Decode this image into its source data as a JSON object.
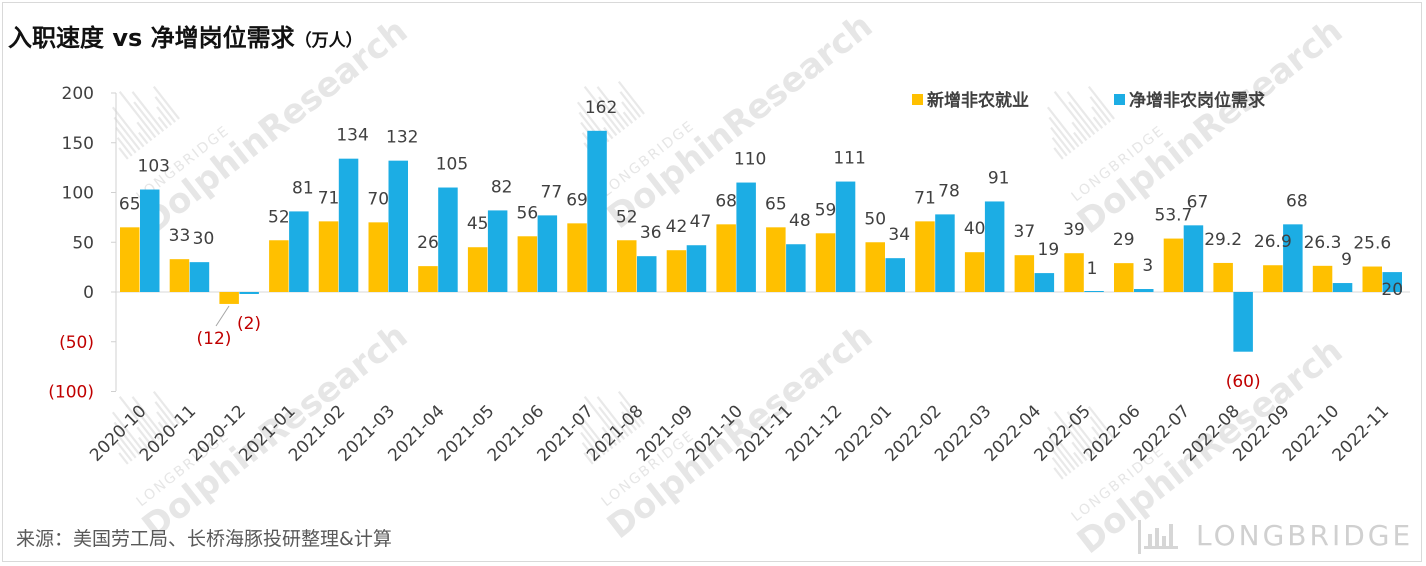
{
  "title": "入职速度 vs 净增岗位需求",
  "title_unit": "（万人）",
  "source": "来源：美国劳工局、长桥海豚投研整理&计算",
  "watermark": {
    "text": "DolphinResearch",
    "subtext": "LONGBRIDGE",
    "brand": "LONGBRIDGE"
  },
  "colors": {
    "series1": "#ffc000",
    "series2": "#1cade4",
    "negative_label": "#c00000",
    "axis_label": "#404040"
  },
  "chart_data": {
    "type": "bar",
    "categories": [
      "2020-10",
      "2020-11",
      "2020-12",
      "2021-01",
      "2021-02",
      "2021-03",
      "2021-04",
      "2021-05",
      "2021-06",
      "2021-07",
      "2021-08",
      "2021-09",
      "2021-10",
      "2021-11",
      "2021-12",
      "2022-01",
      "2022-02",
      "2022-03",
      "2022-04",
      "2022-05",
      "2022-06",
      "2022-07",
      "2022-08",
      "2022-09",
      "2022-10",
      "2022-11"
    ],
    "series": [
      {
        "name": "新增非农就业",
        "values": [
          65,
          33,
          -12,
          52,
          71,
          70,
          26,
          45,
          56,
          69,
          52,
          42,
          68,
          65,
          59,
          50,
          71,
          40,
          37,
          39,
          29,
          53.7,
          29.2,
          26.9,
          26.3,
          25.6
        ],
        "labels": [
          "65",
          "33",
          "(12)",
          "52",
          "71",
          "70",
          "26",
          "45",
          "56",
          "69",
          "52",
          "42",
          "68",
          "65",
          "59",
          "50",
          "71",
          "40",
          "37",
          "39",
          "29",
          "53.7",
          "29.2",
          "26.9",
          "26.3",
          "25.6"
        ]
      },
      {
        "name": "净增非农岗位需求",
        "values": [
          103,
          30,
          -2,
          81,
          134,
          132,
          105,
          82,
          77,
          162,
          36,
          47,
          110,
          48,
          111,
          34,
          78,
          91,
          19,
          1,
          3,
          67,
          -60,
          68,
          9,
          20
        ],
        "labels": [
          "103",
          "30",
          "(2)",
          "81",
          "134",
          "132",
          "105",
          "82",
          "77",
          "162",
          "36",
          "47",
          "110",
          "48",
          "111",
          "34",
          "78",
          "91",
          "19",
          "1",
          "3",
          "67",
          "(60)",
          "68",
          "9",
          "20"
        ]
      }
    ],
    "y_ticks": [
      200,
      150,
      100,
      50,
      0,
      -50,
      -100
    ],
    "y_tick_labels": [
      "200",
      "150",
      "100",
      "50",
      "0",
      "(50)",
      "(100)"
    ],
    "ylim": [
      -100,
      200
    ],
    "legend_position": "top-right",
    "grid": false,
    "xlabel": "",
    "ylabel": ""
  }
}
